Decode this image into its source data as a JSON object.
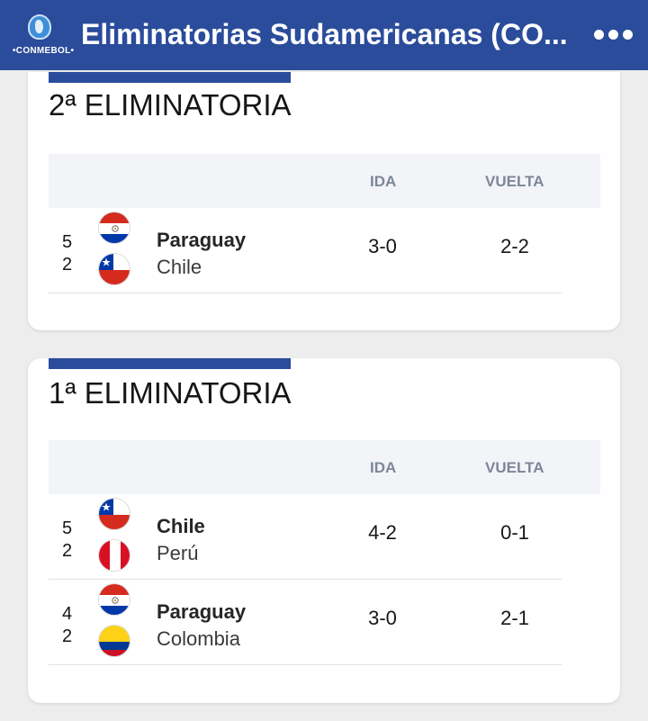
{
  "header": {
    "title": "Eliminatorias Sudamericanas (CO...",
    "brand": "•CONMEBOL•",
    "bg_color": "#2b4c9b"
  },
  "columns": {
    "ida": "IDA",
    "vuelta": "VUELTA"
  },
  "rounds": [
    {
      "title": "2ª ELIMINATORIA",
      "matches": [
        {
          "seed_top": "5",
          "seed_bottom": "2",
          "team_top": "Paraguay",
          "team_bottom": "Chile",
          "flag_top": "paraguay-flag-icon",
          "flag_bottom": "chile-flag-icon",
          "ida": "3-0",
          "vuelta": "2-2"
        }
      ]
    },
    {
      "title": "1ª ELIMINATORIA",
      "matches": [
        {
          "seed_top": "5",
          "seed_bottom": "2",
          "team_top": "Chile",
          "team_bottom": "Perú",
          "flag_top": "chile-flag-icon",
          "flag_bottom": "peru-flag-icon",
          "ida": "4-2",
          "vuelta": "0-1"
        },
        {
          "seed_top": "4",
          "seed_bottom": "2",
          "team_top": "Paraguay",
          "team_bottom": "Colombia",
          "flag_top": "paraguay-flag-icon",
          "flag_bottom": "colombia-flag-icon",
          "ida": "3-0",
          "vuelta": "2-1"
        }
      ]
    }
  ]
}
